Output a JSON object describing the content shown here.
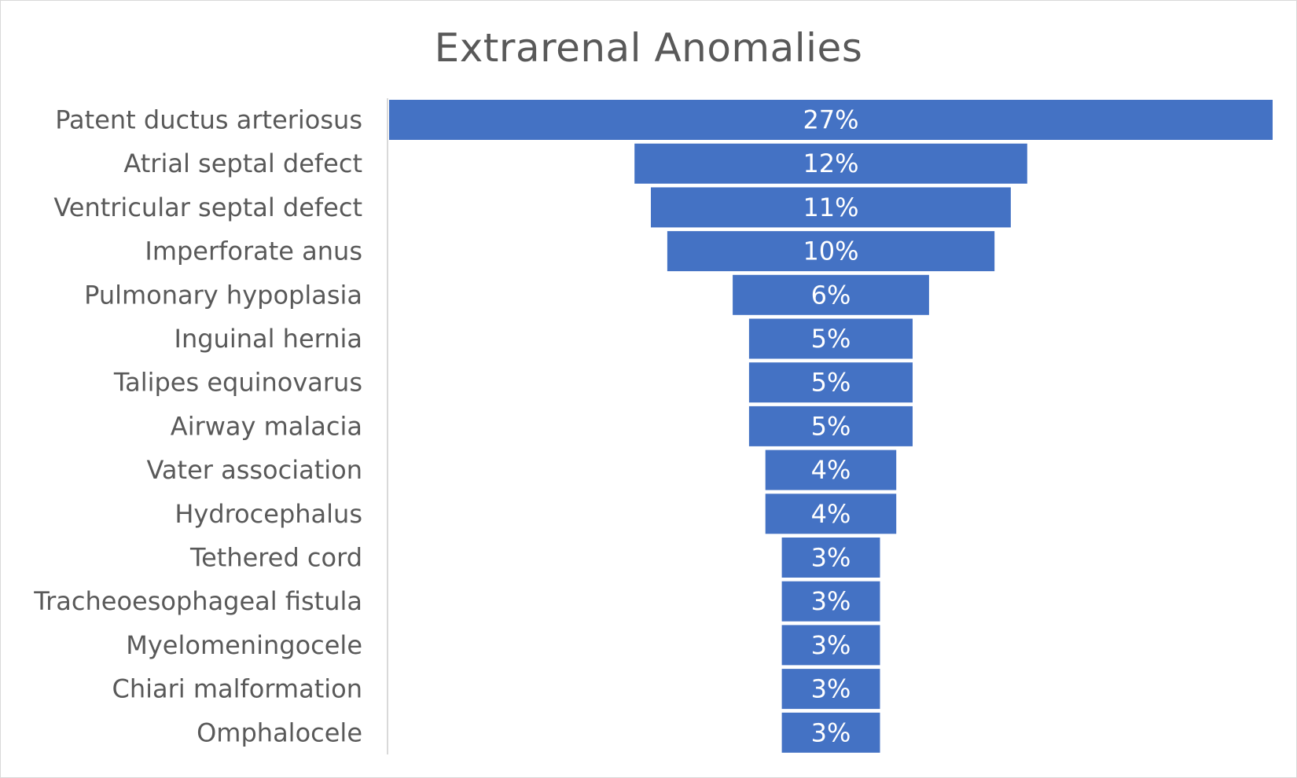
{
  "chart_data": {
    "type": "bar",
    "subtype": "funnel",
    "title": "Extrarenal Anomalies",
    "categories": [
      "Patent ductus arteriosus",
      "Atrial septal defect",
      "Ventricular septal defect",
      "Imperforate anus",
      "Pulmonary hypoplasia",
      "Inguinal hernia",
      "Talipes equinovarus",
      "Airway malacia",
      "Vater association",
      "Hydrocephalus",
      "Tethered cord",
      "Tracheoesophageal fistula",
      "Myelomeningocele",
      "Chiari malformation",
      "Omphalocele"
    ],
    "values": [
      27,
      12,
      11,
      10,
      6,
      5,
      5,
      5,
      4,
      4,
      3,
      3,
      3,
      3,
      3
    ],
    "data_labels": [
      "27%",
      "12%",
      "11%",
      "10%",
      "6%",
      "5%",
      "5%",
      "5%",
      "4%",
      "4%",
      "3%",
      "3%",
      "3%",
      "3%",
      "3%"
    ],
    "unit": "%",
    "bar_color": "#4472c4",
    "label_color": "#ffffff",
    "text_color": "#595959",
    "grid": false,
    "legend": "none"
  }
}
